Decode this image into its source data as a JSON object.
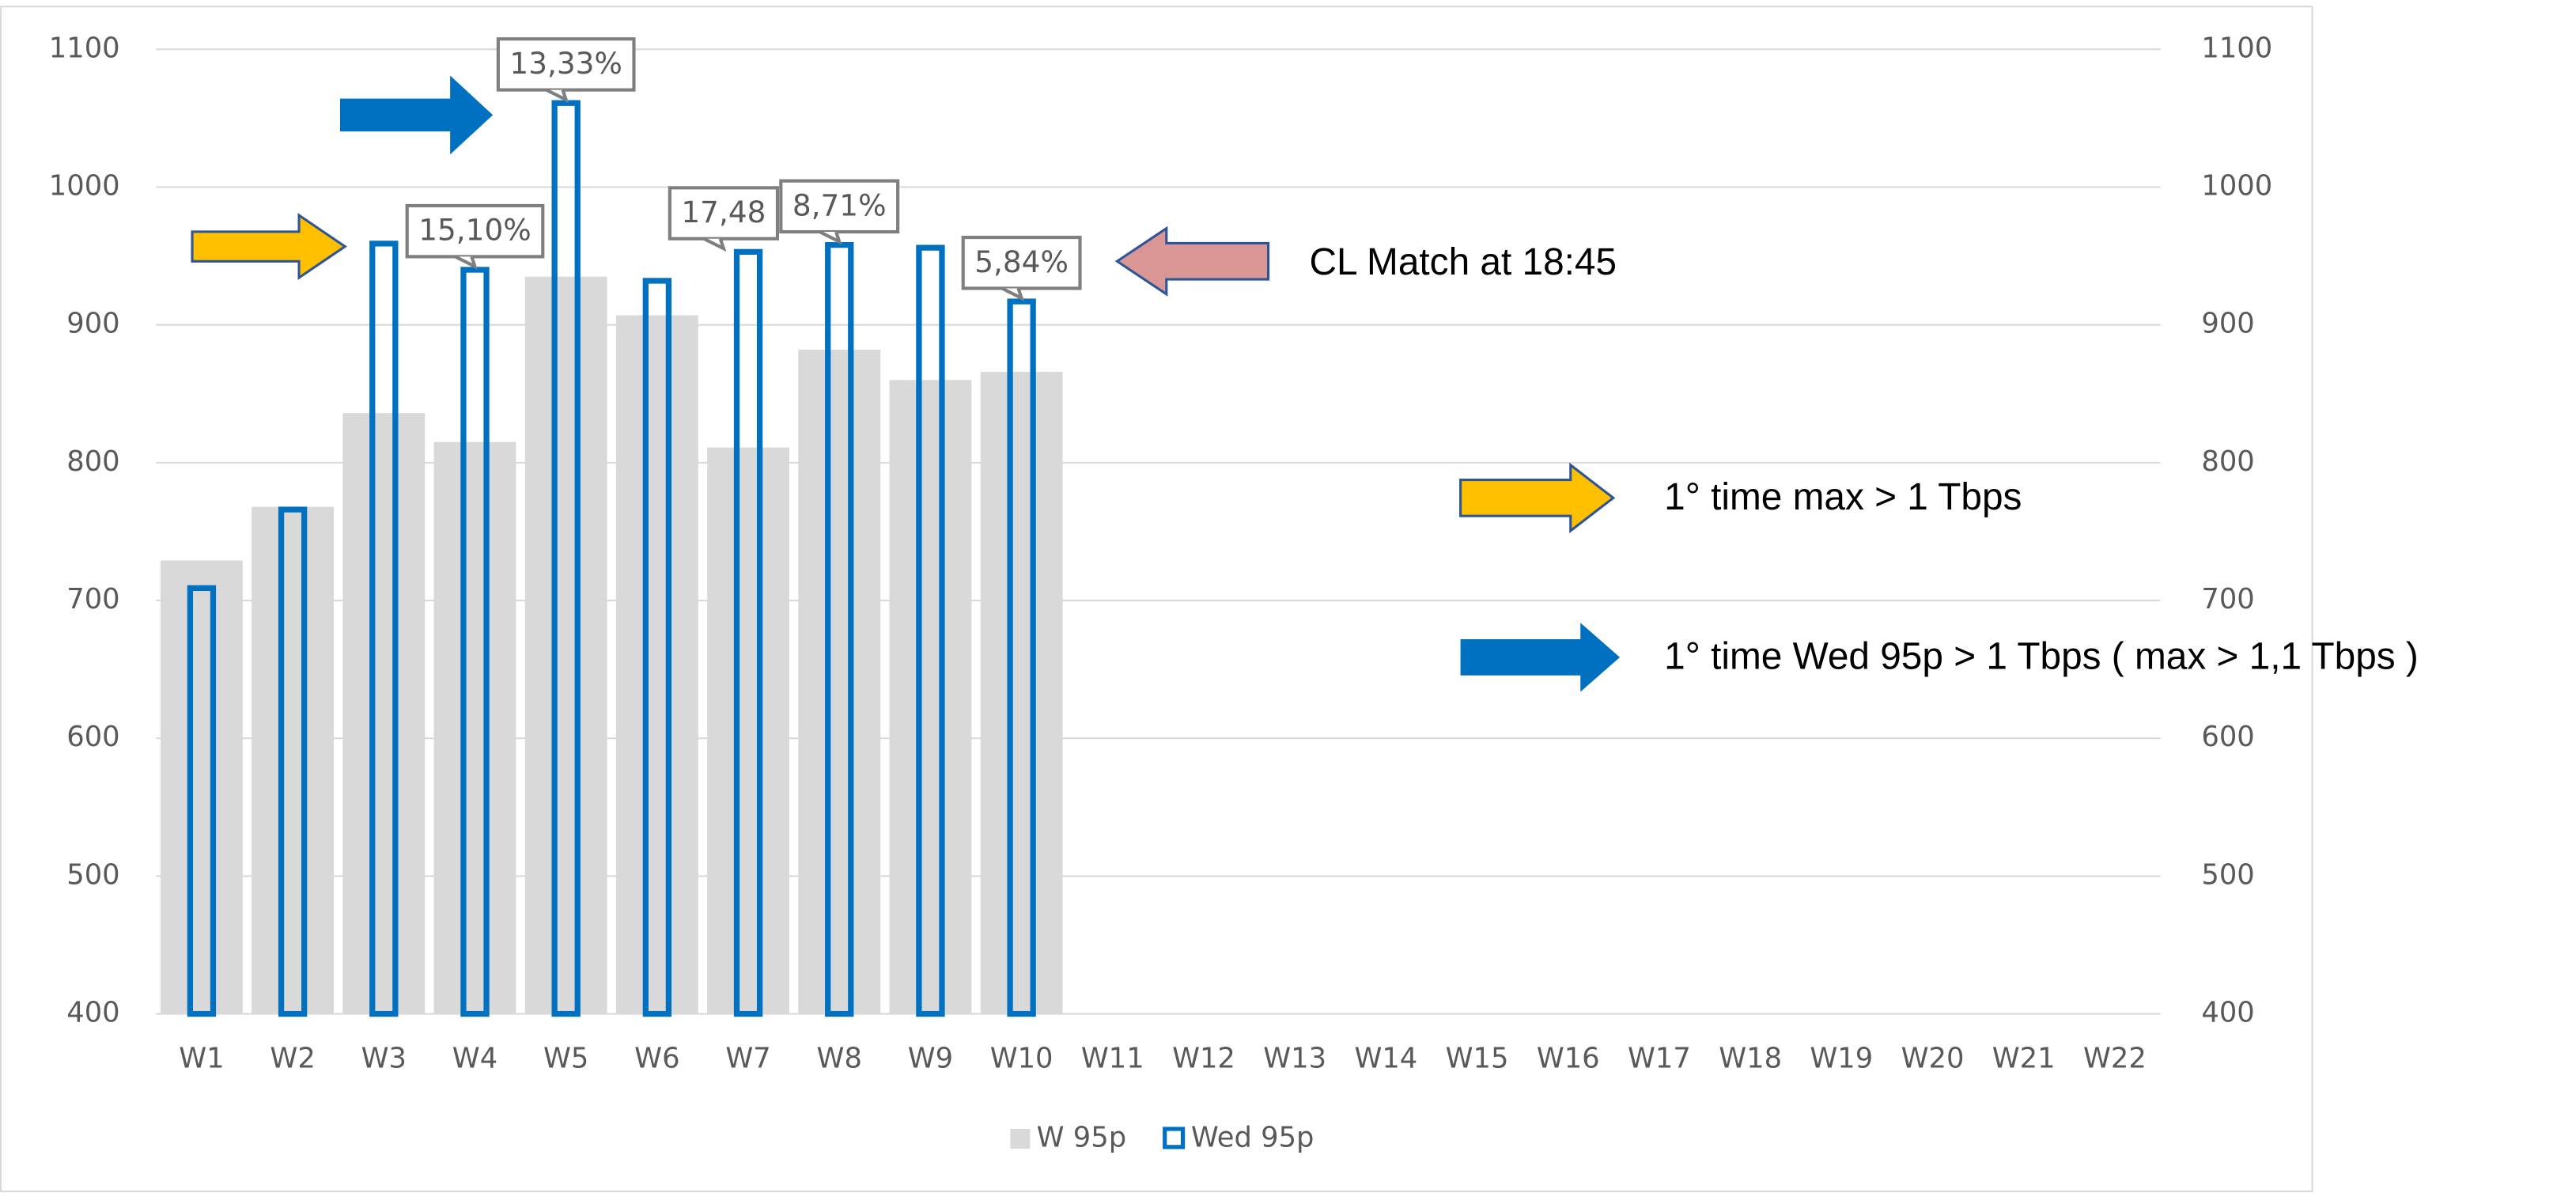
{
  "chart_data": {
    "type": "bar",
    "categories": [
      "W1",
      "W2",
      "W3",
      "W4",
      "W5",
      "W6",
      "W7",
      "W8",
      "W9",
      "W10",
      "W11",
      "W12",
      "W13",
      "W14",
      "W15",
      "W16",
      "W17",
      "W18",
      "W19",
      "W20",
      "W21",
      "W22"
    ],
    "series": [
      {
        "name": "W 95p",
        "color": "#d9d9d9",
        "values": [
          729,
          768,
          836,
          815,
          935,
          907,
          811,
          882,
          860,
          866,
          null,
          null,
          null,
          null,
          null,
          null,
          null,
          null,
          null,
          null,
          null,
          null
        ]
      },
      {
        "name": "Wed 95p",
        "color": "#0070c0",
        "values": [
          709,
          766,
          959,
          940,
          1061,
          932,
          953,
          958,
          956,
          917,
          null,
          null,
          null,
          null,
          null,
          null,
          null,
          null,
          null,
          null,
          null,
          null
        ]
      }
    ],
    "ylim": [
      400,
      1100
    ],
    "yticks": [
      400,
      500,
      600,
      700,
      800,
      900,
      1000,
      1100
    ],
    "y2lim": [
      400,
      1100
    ],
    "y2ticks": [
      400,
      500,
      600,
      700,
      800,
      900,
      1000,
      1100
    ],
    "grid": true,
    "callouts": [
      "15,10%",
      "13,33%",
      "17,48",
      "8,71%",
      "5,84%"
    ],
    "annotations": [
      "CL Match at 18:45",
      "1° time max > 1 Tbps",
      "1° time Wed 95p > 1 Tbps ( max > 1,1 Tbps )"
    ]
  }
}
